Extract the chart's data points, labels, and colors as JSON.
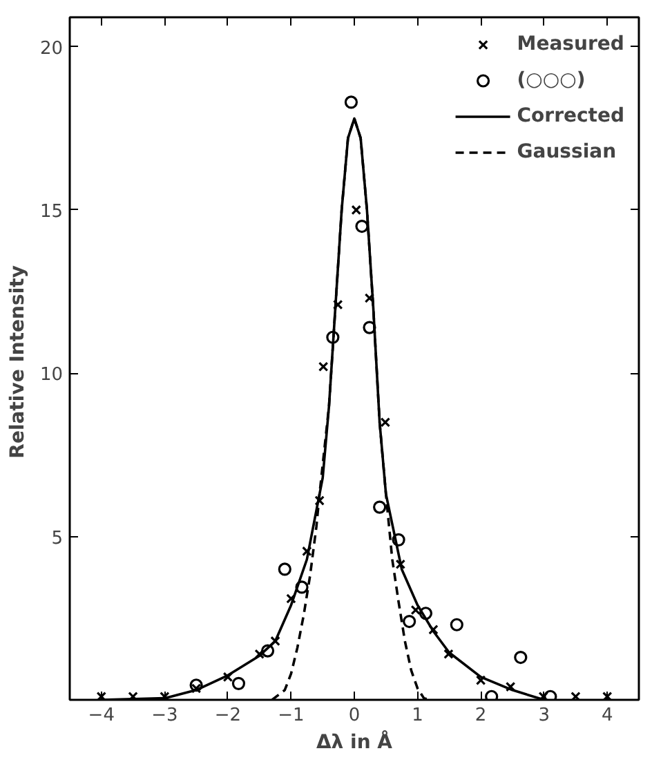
{
  "chart_data": {
    "type": "scatter",
    "xlabel": "Δλ in Å",
    "ylabel": "Relative  Intensity",
    "xlim": [
      -4.5,
      4.5
    ],
    "ylim": [
      0,
      20.9
    ],
    "xticks": [
      -4,
      -3,
      -2,
      -1,
      0,
      1,
      2,
      3,
      4
    ],
    "yticks": [
      5,
      10,
      15,
      20
    ],
    "grid": false,
    "legend": "top right",
    "series": [
      {
        "name": "Measured",
        "marker": "cross",
        "color": "#000000",
        "x": [
          -4.0,
          -3.5,
          -3.0,
          -2.5,
          -2.0,
          -1.5,
          -1.25,
          -1.0,
          -0.75,
          -0.55,
          -0.49,
          -0.26,
          0.03,
          0.24,
          0.49,
          0.73,
          0.97,
          1.25,
          1.49,
          2.0,
          2.47,
          2.99,
          3.5,
          4.0
        ],
        "values": [
          0.1,
          0.1,
          0.1,
          0.35,
          0.7,
          1.4,
          1.8,
          3.1,
          4.55,
          6.1,
          10.2,
          12.1,
          15.0,
          12.3,
          8.5,
          4.15,
          2.75,
          2.15,
          1.4,
          0.6,
          0.4,
          0.1,
          0.1,
          0.1
        ]
      },
      {
        "name": "(○○○)",
        "marker": "circle",
        "color": "#000000",
        "x": [
          -2.5,
          -1.83,
          -1.37,
          -1.1,
          -0.83,
          -0.34,
          -0.05,
          0.12,
          0.24,
          0.4,
          0.7,
          0.87,
          1.13,
          1.62,
          2.17,
          2.63,
          3.1
        ],
        "values": [
          0.45,
          0.5,
          1.5,
          4.0,
          3.45,
          11.1,
          18.3,
          14.5,
          11.4,
          5.9,
          4.9,
          2.4,
          2.65,
          2.3,
          0.1,
          1.3,
          0.1
        ]
      },
      {
        "name": "Corrected",
        "type": "line",
        "line_style": "solid",
        "color": "#000000",
        "x": [
          -4,
          -3,
          -2.5,
          -2,
          -1.5,
          -1.25,
          -1,
          -0.75,
          -0.5,
          -0.4,
          -0.3,
          -0.2,
          -0.1,
          0,
          0.1,
          0.2,
          0.3,
          0.4,
          0.5,
          0.75,
          1,
          1.25,
          1.5,
          2,
          2.5,
          3
        ],
        "values": [
          0,
          0.05,
          0.3,
          0.75,
          1.35,
          1.8,
          2.9,
          4.3,
          6.8,
          9,
          12,
          15,
          17.2,
          17.8,
          17.2,
          15,
          12,
          8.5,
          6.3,
          4.0,
          2.9,
          2.1,
          1.45,
          0.7,
          0.3,
          0
        ]
      },
      {
        "name": "Gaussian",
        "type": "line",
        "line_style": "dashed",
        "color": "#000000",
        "x": [
          -1.3,
          -1.1,
          -1,
          -0.9,
          -0.8,
          -0.7,
          -0.6,
          -0.55,
          -0.4,
          -0.3,
          -0.2,
          -0.1,
          0,
          0.1,
          0.2,
          0.3,
          0.4,
          0.5,
          0.6,
          0.7,
          0.8,
          0.9,
          1.0,
          1.1,
          1.2
        ],
        "values": [
          0,
          0.3,
          0.8,
          1.6,
          2.6,
          3.8,
          5.3,
          6.3,
          9,
          12,
          15,
          17.2,
          17.8,
          17.2,
          15,
          12,
          8.5,
          6.3,
          4.3,
          3.0,
          1.8,
          0.9,
          0.35,
          0.05,
          0
        ]
      }
    ]
  }
}
